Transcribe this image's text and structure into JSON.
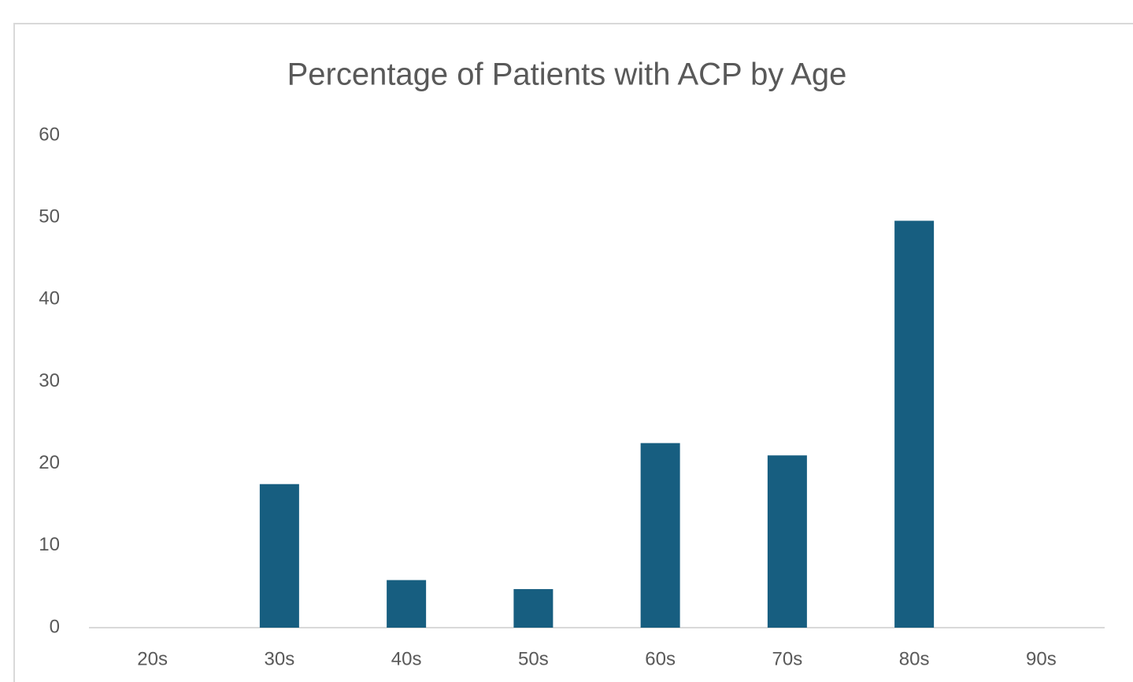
{
  "chart_data": {
    "type": "bar",
    "title": "Percentage of Patients with ACP by Age",
    "categories": [
      "20s",
      "30s",
      "40s",
      "50s",
      "60s",
      "70s",
      "80s",
      "90s"
    ],
    "values": [
      0,
      17.5,
      5.8,
      4.7,
      22.5,
      21.0,
      49.6,
      0
    ],
    "color": "#175e80",
    "ylim": [
      0,
      60
    ],
    "yticks": [
      0,
      10,
      20,
      30,
      40,
      50,
      60
    ],
    "grid": false
  }
}
